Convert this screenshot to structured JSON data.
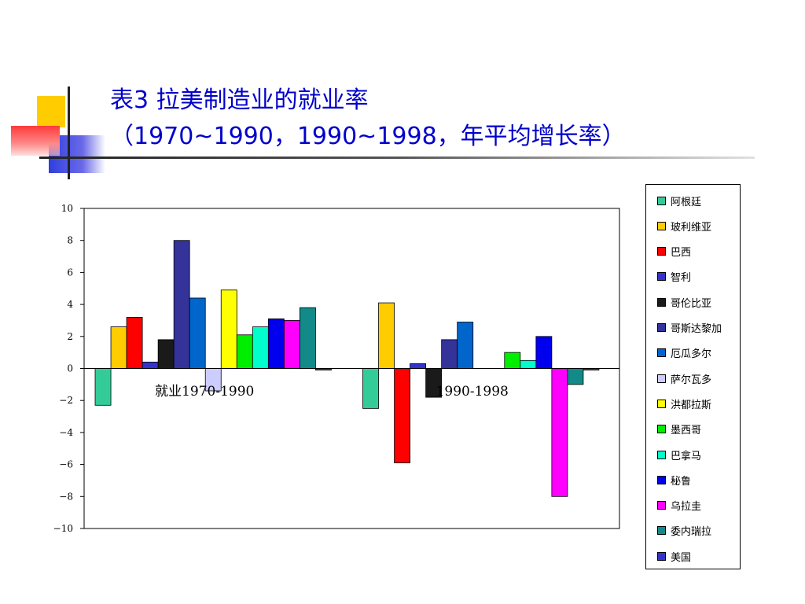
{
  "slide": {
    "title_line1": "表3 拉美制造业的就业率",
    "title_line2": "（1970~1990，1990~1998，年平均增长率）"
  },
  "chart_data": {
    "type": "bar",
    "title": "",
    "xlabel": "",
    "ylabel": "",
    "ylim": [
      -10,
      10
    ],
    "yticks": [
      "10",
      "8",
      "6",
      "4",
      "2",
      "0",
      "−2",
      "−4",
      "−6",
      "−8",
      "−10"
    ],
    "grid": false,
    "legend_position": "right",
    "categories": [
      "就业1970-1990",
      "1990-1998"
    ],
    "series": [
      {
        "name": "阿根廷",
        "color": "#33cc99",
        "values": [
          -2.3,
          -2.5
        ]
      },
      {
        "name": "玻利维亚",
        "color": "#ffcc00",
        "values": [
          2.6,
          4.1
        ]
      },
      {
        "name": "巴西",
        "color": "#ff0000",
        "values": [
          3.2,
          -5.9
        ]
      },
      {
        "name": "智利",
        "color": "#3333cc",
        "values": [
          0.4,
          0.3
        ]
      },
      {
        "name": "哥伦比亚",
        "color": "#1a1a1a",
        "values": [
          1.8,
          -1.8
        ]
      },
      {
        "name": "哥斯达黎加",
        "color": "#333399",
        "values": [
          8.0,
          1.8
        ]
      },
      {
        "name": "厄瓜多尔",
        "color": "#0066cc",
        "values": [
          4.4,
          2.9
        ]
      },
      {
        "name": "萨尔瓦多",
        "color": "#ccccff",
        "values": [
          -1.4,
          0
        ]
      },
      {
        "name": "洪都拉斯",
        "color": "#ffff00",
        "values": [
          4.9,
          0
        ]
      },
      {
        "name": "墨西哥",
        "color": "#00ee00",
        "values": [
          2.1,
          1.0
        ]
      },
      {
        "name": "巴拿马",
        "color": "#00ffcc",
        "values": [
          2.6,
          0.5
        ]
      },
      {
        "name": "秘鲁",
        "color": "#0000ee",
        "values": [
          3.1,
          2.0
        ]
      },
      {
        "name": "乌拉圭",
        "color": "#ff00ff",
        "values": [
          3.0,
          -8.0
        ]
      },
      {
        "name": "委内瑞拉",
        "color": "#138a8a",
        "values": [
          3.8,
          -1.0
        ]
      },
      {
        "name": "美国",
        "color": "#3333cc",
        "values": [
          -0.1,
          -0.1
        ]
      }
    ]
  }
}
